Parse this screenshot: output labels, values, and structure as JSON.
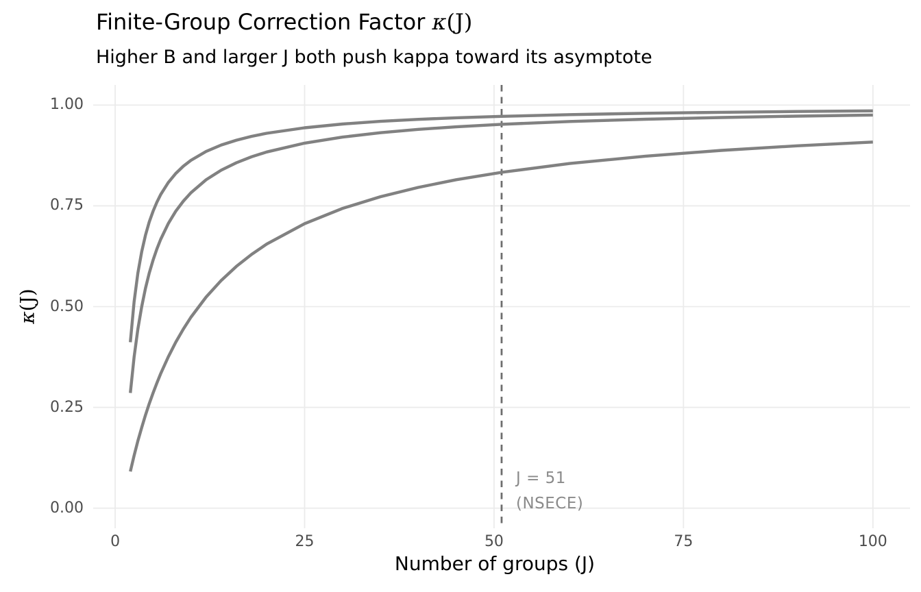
{
  "title": {
    "main": "Finite-Group Correction Factor ",
    "kappa": "κ",
    "suffix": "(J)"
  },
  "subtitle": "Higher B and larger J both push kappa toward its asymptote",
  "axes": {
    "x": {
      "title": "Number of groups (J)",
      "ticks": [
        {
          "label": "0",
          "value": 0
        },
        {
          "label": "25",
          "value": 25
        },
        {
          "label": "50",
          "value": 50
        },
        {
          "label": "75",
          "value": 75
        },
        {
          "label": "100",
          "value": 100
        }
      ]
    },
    "y": {
      "title_kappa": "κ",
      "title_suffix": "(J)",
      "ticks": [
        {
          "label": "1.00",
          "value": 1.0
        },
        {
          "label": "0.75",
          "value": 0.75
        },
        {
          "label": "0.50",
          "value": 0.5
        },
        {
          "label": "0.25",
          "value": 0.25
        },
        {
          "label": "0.00",
          "value": 0.0
        }
      ]
    }
  },
  "annotation": {
    "line1": "J = 51",
    "line2": "(NSECE)"
  },
  "colors": {
    "background": "#FFFFFF",
    "gridline": "#EBEBEB",
    "curve": "#818181",
    "vline": "#6E6E6E",
    "annotation_text": "#8A8A8A",
    "tick_text": "#4D4D4D",
    "title_text": "#000000"
  },
  "chart_data": {
    "type": "line",
    "title": "Finite-Group Correction Factor κ(J)",
    "subtitle": "Higher B and larger J both push kappa toward its asymptote",
    "xlabel": "Number of groups (J)",
    "ylabel": "κ(J)",
    "xlim": [
      0,
      100
    ],
    "ylim": [
      0,
      1
    ],
    "x_ticks": [
      0,
      25,
      50,
      75,
      100
    ],
    "y_ticks": [
      1.0,
      0.75,
      0.5,
      0.25,
      0.0
    ],
    "grid": "major-only",
    "legend": "none",
    "vline": {
      "x": 51,
      "style": "dashed",
      "label": "J = 51 (NSECE)"
    },
    "x": [
      2,
      2.5,
      3,
      3.5,
      4,
      4.5,
      5,
      5.5,
      6,
      7,
      8,
      9,
      10,
      12,
      14,
      16,
      18,
      20,
      25,
      30,
      35,
      40,
      45,
      51,
      60,
      70,
      80,
      90,
      100
    ],
    "series": [
      {
        "name": "top curve (highest B)",
        "values": [
          0.4118,
          0.5122,
          0.5833,
          0.6364,
          0.6774,
          0.7101,
          0.7368,
          0.759,
          0.7778,
          0.8077,
          0.8305,
          0.8485,
          0.863,
          0.8851,
          0.901,
          0.913,
          0.9225,
          0.9301,
          0.9438,
          0.9531,
          0.9597,
          0.9647,
          0.9686,
          0.9722,
          0.9764,
          0.9797,
          0.9822,
          0.9842,
          0.9858
        ]
      },
      {
        "name": "middle curve",
        "values": [
          0.2857,
          0.375,
          0.4444,
          0.5,
          0.5455,
          0.5833,
          0.6154,
          0.6429,
          0.6667,
          0.7059,
          0.7368,
          0.7619,
          0.7826,
          0.8148,
          0.8387,
          0.8571,
          0.8718,
          0.8837,
          0.9057,
          0.9206,
          0.9315,
          0.9398,
          0.9462,
          0.9524,
          0.9593,
          0.965,
          0.9693,
          0.9727,
          0.9754
        ]
      },
      {
        "name": "bottom curve (lowest B)",
        "values": [
          0.0909,
          0.1304,
          0.1667,
          0.2,
          0.2308,
          0.2593,
          0.2857,
          0.3103,
          0.3333,
          0.375,
          0.4118,
          0.4444,
          0.4737,
          0.5238,
          0.5652,
          0.6,
          0.6296,
          0.6552,
          0.7059,
          0.7436,
          0.7727,
          0.7959,
          0.8148,
          0.8333,
          0.8551,
          0.8734,
          0.8876,
          0.899,
          0.9083
        ]
      }
    ]
  }
}
